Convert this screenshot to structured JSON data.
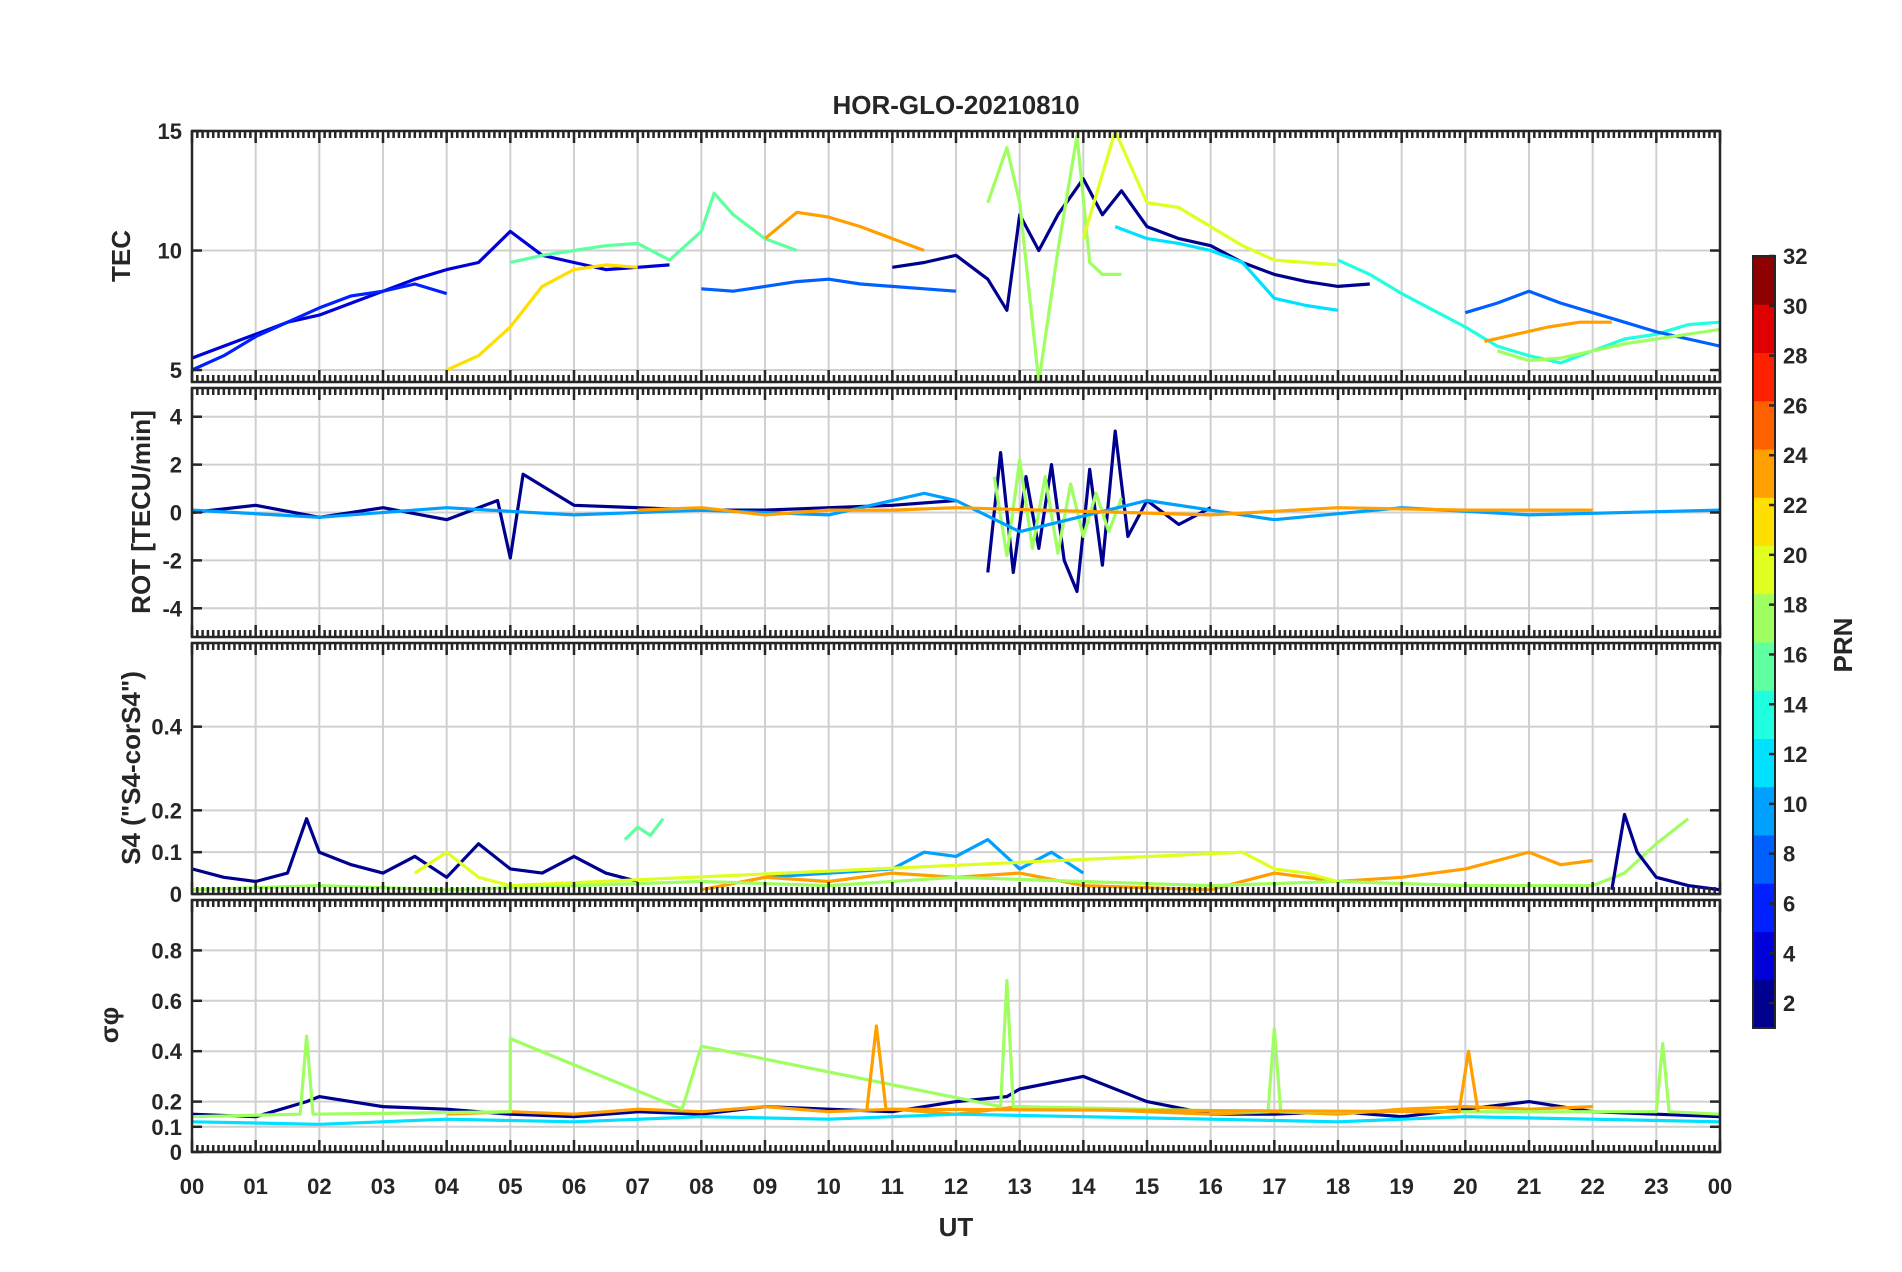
{
  "chart_data": {
    "type": "line",
    "title": "HOR-GLO-20210810",
    "xlabel": "UT",
    "x_range": [
      0,
      24
    ],
    "x_ticks": [
      "00",
      "01",
      "02",
      "03",
      "04",
      "05",
      "06",
      "07",
      "08",
      "09",
      "10",
      "11",
      "12",
      "13",
      "14",
      "15",
      "16",
      "17",
      "18",
      "19",
      "20",
      "21",
      "22",
      "23",
      "00"
    ],
    "grid": true,
    "colorbar": {
      "label": "PRN",
      "colormap": "jet",
      "range": [
        1,
        32
      ],
      "ticks": [
        "2",
        "4",
        "6",
        "8",
        "10",
        "12",
        "14",
        "16",
        "18",
        "20",
        "22",
        "24",
        "26",
        "28",
        "30",
        "32"
      ],
      "colors": [
        "#00008f",
        "#0000d9",
        "#0020ff",
        "#0060ff",
        "#00a0ff",
        "#00e0ff",
        "#20ffdf",
        "#60ff9f",
        "#a0ff60",
        "#e0ff20",
        "#ffdf00",
        "#ff9f00",
        "#ff6000",
        "#ff2000",
        "#df0000",
        "#8f0000"
      ]
    },
    "panels": [
      {
        "id": "tec",
        "ylabel": "TEC",
        "ylim": [
          4.5,
          15
        ],
        "yticks": [
          "5",
          "10",
          "15"
        ],
        "series": [
          {
            "prn": 4,
            "x": [
              0,
              0.5,
              1,
              1.5,
              2,
              2.5,
              3,
              3.5,
              4,
              4.5,
              5,
              5.5,
              6,
              6.5,
              7,
              7.5
            ],
            "y": [
              5.5,
              6,
              6.5,
              7,
              7.3,
              7.8,
              8.3,
              8.8,
              9.2,
              9.5,
              10.8,
              9.8,
              9.5,
              9.2,
              9.3,
              9.4
            ]
          },
          {
            "prn": 6,
            "x": [
              0,
              0.5,
              1,
              1.5,
              2,
              2.5,
              3,
              3.5,
              4
            ],
            "y": [
              5,
              5.6,
              6.4,
              7,
              7.6,
              8.1,
              8.3,
              8.6,
              8.2
            ]
          },
          {
            "prn": 15,
            "x": [
              5,
              5.5,
              6,
              6.5,
              7,
              7.5,
              8,
              8.2,
              8.5,
              9,
              9.5
            ],
            "y": [
              9.5,
              9.8,
              10,
              10.2,
              10.3,
              9.6,
              10.8,
              12.4,
              11.5,
              10.5,
              10
            ]
          },
          {
            "prn": 21,
            "x": [
              4,
              4.5,
              5,
              5.5,
              6,
              6.5,
              7
            ],
            "y": [
              5,
              5.6,
              6.8,
              8.5,
              9.2,
              9.4,
              9.3
            ]
          },
          {
            "prn": 7,
            "x": [
              8,
              8.5,
              9,
              9.5,
              10,
              10.5,
              11,
              11.5,
              12
            ],
            "y": [
              8.4,
              8.3,
              8.5,
              8.7,
              8.8,
              8.6,
              8.5,
              8.4,
              8.3
            ]
          },
          {
            "prn": 24,
            "x": [
              9,
              9.5,
              10,
              10.5,
              11,
              11.5
            ],
            "y": [
              10.5,
              11.6,
              11.4,
              11,
              10.5,
              10
            ]
          },
          {
            "prn": 2,
            "x": [
              11,
              11.5,
              12,
              12.5,
              12.8,
              13,
              13.3,
              13.6,
              14,
              14.3,
              14.6,
              15,
              15.5,
              16,
              16.5,
              17,
              17.5,
              18,
              18.5
            ],
            "y": [
              9.3,
              9.5,
              9.8,
              8.8,
              7.5,
              11.5,
              10,
              11.5,
              13,
              11.5,
              12.5,
              11,
              10.5,
              10.2,
              9.5,
              9,
              8.7,
              8.5,
              8.6
            ]
          },
          {
            "prn": 17,
            "x": [
              12.5,
              12.8,
              13,
              13.3,
              13.6,
              13.9,
              14.1,
              14.3,
              14.6
            ],
            "y": [
              12,
              14.3,
              12,
              4.5,
              10,
              14.8,
              9.5,
              9,
              9
            ]
          },
          {
            "prn": 19,
            "x": [
              14,
              14.5,
              15,
              15.5,
              16,
              16.5,
              17,
              17.5,
              18
            ],
            "y": [
              10.5,
              15,
              12,
              11.8,
              11,
              10.2,
              9.6,
              9.5,
              9.4
            ]
          },
          {
            "prn": 12,
            "x": [
              14.5,
              15,
              15.5,
              16,
              16.5,
              17,
              17.5,
              18
            ],
            "y": [
              11,
              10.5,
              10.3,
              10,
              9.5,
              8,
              7.7,
              7.5
            ]
          },
          {
            "prn": 14,
            "x": [
              18,
              18.5,
              19,
              19.5,
              20,
              20.5,
              21,
              21.5,
              22,
              22.5,
              23,
              23.5,
              24
            ],
            "y": [
              9.6,
              9,
              8.2,
              7.5,
              6.8,
              6,
              5.6,
              5.3,
              5.8,
              6.3,
              6.5,
              6.9,
              7
            ]
          },
          {
            "prn": 8,
            "x": [
              20,
              20.5,
              21,
              21.5,
              22,
              22.5,
              23,
              23.5,
              24
            ],
            "y": [
              7.4,
              7.8,
              8.3,
              7.8,
              7.4,
              7,
              6.6,
              6.3,
              6
            ]
          },
          {
            "prn": 23,
            "x": [
              20.3,
              20.8,
              21.3,
              21.8,
              22.3
            ],
            "y": [
              6.2,
              6.5,
              6.8,
              7,
              7
            ]
          },
          {
            "prn": 17,
            "x": [
              20.5,
              21,
              21.5,
              22,
              22.5,
              23,
              23.5,
              24
            ],
            "y": [
              5.8,
              5.4,
              5.5,
              5.8,
              6.1,
              6.3,
              6.5,
              6.7
            ]
          }
        ]
      },
      {
        "id": "rot",
        "ylabel": "ROT [TECU/min]",
        "ylim": [
          -5.2,
          5.2
        ],
        "yticks": [
          "-4",
          "-2",
          "0",
          "2",
          "4"
        ],
        "series": [
          {
            "prn": 2,
            "x": [
              0,
              1,
              2,
              3,
              4,
              4.8,
              5,
              5.2,
              6,
              7,
              8,
              9,
              10,
              11,
              12
            ],
            "y": [
              0,
              0.3,
              -0.2,
              0.2,
              -0.3,
              0.5,
              -1.9,
              1.6,
              0.3,
              0.2,
              0.1,
              0.1,
              0.2,
              0.3,
              0.5
            ]
          },
          {
            "prn": 2,
            "x": [
              12.5,
              12.7,
              12.9,
              13.1,
              13.3,
              13.5,
              13.7,
              13.9,
              14.1,
              14.3,
              14.5,
              14.7,
              15,
              15.5,
              16
            ],
            "y": [
              -2.5,
              2.5,
              -2.5,
              1.5,
              -1.5,
              2,
              -2,
              -3.3,
              1.8,
              -2.2,
              3.4,
              -1,
              0.5,
              -0.5,
              0.2
            ]
          },
          {
            "prn": 17,
            "x": [
              12.6,
              12.8,
              13,
              13.2,
              13.4,
              13.6,
              13.8,
              14,
              14.2,
              14.4,
              14.6
            ],
            "y": [
              1.5,
              -1.8,
              2.2,
              -1.5,
              1.5,
              -1.7,
              1.2,
              -1,
              0.8,
              -0.8,
              0.6
            ]
          },
          {
            "prn": 10,
            "x": [
              0,
              2,
              4,
              6,
              8,
              10,
              11.5,
              12,
              13,
              15,
              17,
              19,
              21,
              24
            ],
            "y": [
              0.1,
              -0.2,
              0.2,
              -0.1,
              0.1,
              -0.1,
              0.8,
              0.5,
              -0.8,
              0.5,
              -0.3,
              0.2,
              -0.1,
              0.1
            ]
          },
          {
            "prn": 24,
            "x": [
              7,
              8,
              9,
              10,
              11,
              12,
              16,
              18,
              20,
              22
            ],
            "y": [
              0.1,
              0.2,
              -0.1,
              0.1,
              0.1,
              0.2,
              -0.1,
              0.2,
              0.1,
              0.1
            ]
          }
        ]
      },
      {
        "id": "s4",
        "ylabel": "S4 (\"S4-corS4\")",
        "ylim": [
          0,
          0.6
        ],
        "yticks": [
          "0",
          "0.1",
          "0.2",
          "0.4"
        ],
        "series": [
          {
            "prn": 2,
            "x": [
              0,
              0.5,
              1,
              1.5,
              1.8,
              2,
              2.5,
              3,
              3.5,
              4,
              4.5,
              5,
              5.5,
              6,
              6.5,
              7
            ],
            "y": [
              0.06,
              0.04,
              0.03,
              0.05,
              0.18,
              0.1,
              0.07,
              0.05,
              0.09,
              0.04,
              0.12,
              0.06,
              0.05,
              0.09,
              0.05,
              0.03
            ]
          },
          {
            "prn": 15,
            "x": [
              6.8,
              7,
              7.2,
              7.4
            ],
            "y": [
              0.13,
              0.16,
              0.14,
              0.18
            ]
          },
          {
            "prn": 10,
            "x": [
              9,
              10,
              11,
              11.5,
              12,
              12.5,
              13,
              13.5,
              14
            ],
            "y": [
              0.04,
              0.05,
              0.06,
              0.1,
              0.09,
              0.13,
              0.06,
              0.1,
              0.05
            ]
          },
          {
            "prn": 24,
            "x": [
              8,
              9,
              10,
              11,
              12,
              13,
              14,
              16,
              17,
              18,
              19,
              20,
              21,
              21.5,
              22
            ],
            "y": [
              0.01,
              0.04,
              0.03,
              0.05,
              0.04,
              0.05,
              0.02,
              0.01,
              0.05,
              0.03,
              0.04,
              0.06,
              0.1,
              0.07,
              0.08
            ]
          },
          {
            "prn": 17,
            "x": [
              0,
              2,
              4,
              6,
              8,
              10,
              12,
              14,
              16,
              18,
              20,
              22,
              22.5,
              23,
              23.5
            ],
            "y": [
              0.01,
              0.02,
              0.01,
              0.02,
              0.03,
              0.02,
              0.04,
              0.03,
              0.02,
              0.03,
              0.02,
              0.02,
              0.05,
              0.12,
              0.18
            ]
          },
          {
            "prn": 2,
            "x": [
              22.3,
              22.5,
              22.7,
              23,
              23.5,
              24
            ],
            "y": [
              0.01,
              0.19,
              0.1,
              0.04,
              0.02,
              0.01
            ]
          },
          {
            "prn": 20,
            "x": [
              3.5,
              4,
              4.5,
              5,
              16.5,
              17,
              17.5,
              18
            ],
            "y": [
              0.05,
              0.1,
              0.04,
              0.02,
              0.1,
              0.06,
              0.05,
              0.03
            ]
          }
        ]
      },
      {
        "id": "sigma",
        "ylabel": "σφ",
        "ylim": [
          0,
          1
        ],
        "yticks": [
          "0",
          "0.1",
          "0.2",
          "0.4",
          "0.6",
          "0.8"
        ],
        "series": [
          {
            "prn": 2,
            "x": [
              0,
              1,
              1.8,
              2,
              3,
              4,
              5,
              6,
              7,
              8,
              9,
              10,
              11,
              12,
              12.8,
              13,
              14,
              15,
              16,
              17,
              18,
              19,
              20,
              21,
              22,
              23,
              24
            ],
            "y": [
              0.15,
              0.14,
              0.2,
              0.22,
              0.18,
              0.17,
              0.15,
              0.14,
              0.16,
              0.15,
              0.18,
              0.17,
              0.16,
              0.2,
              0.22,
              0.25,
              0.3,
              0.2,
              0.15,
              0.15,
              0.16,
              0.14,
              0.17,
              0.2,
              0.16,
              0.15,
              0.14
            ]
          },
          {
            "prn": 24,
            "x": [
              4,
              5,
              6,
              7,
              8,
              9,
              10,
              11,
              12,
              13,
              14,
              15,
              16,
              17,
              18,
              19,
              20,
              21,
              22
            ],
            "y": [
              0.15,
              0.16,
              0.15,
              0.17,
              0.16,
              0.18,
              0.16,
              0.17,
              0.15,
              0.18,
              0.17,
              0.16,
              0.15,
              0.16,
              0.15,
              0.17,
              0.18,
              0.17,
              0.18
            ]
          },
          {
            "prn": 17,
            "x": [
              0,
              1.7,
              1.8,
              1.9,
              5,
              5,
              7.7,
              8,
              12.7,
              12.8,
              12.9,
              16.9,
              17,
              17.1,
              23,
              23.1,
              23.2,
              24
            ],
            "y": [
              0.14,
              0.15,
              0.46,
              0.15,
              0.16,
              0.45,
              0.17,
              0.42,
              0.18,
              0.68,
              0.18,
              0.16,
              0.49,
              0.16,
              0.16,
              0.43,
              0.16,
              0.15
            ]
          },
          {
            "prn": 12,
            "x": [
              0,
              2,
              4,
              6,
              8,
              10,
              12,
              14,
              16,
              18,
              20,
              22,
              24
            ],
            "y": [
              0.12,
              0.11,
              0.13,
              0.12,
              0.14,
              0.13,
              0.15,
              0.14,
              0.13,
              0.12,
              0.14,
              0.13,
              0.12
            ]
          },
          {
            "prn": 23,
            "x": [
              10.6,
              10.75,
              10.9,
              19.9,
              20.05,
              20.2
            ],
            "y": [
              0.17,
              0.5,
              0.17,
              0.16,
              0.4,
              0.16
            ]
          }
        ]
      }
    ]
  }
}
